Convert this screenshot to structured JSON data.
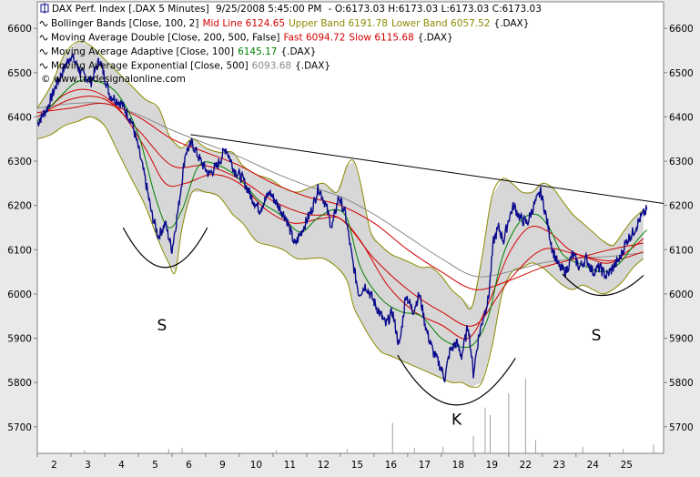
{
  "chart_data": {
    "type": "line",
    "title_line": {
      "instrument": "DAX Perf. Index [.DAX 5 Minutes]",
      "datetime": "9/25/2008 5:45:00 PM",
      "ohlc": "- O:6173.03 H:6173.03 L:6173.03 C:6173.03"
    },
    "legend": [
      {
        "label": "Bollinger Bands [Close, 100, 2]",
        "parts": [
          {
            "text": "Mid Line 6124.65",
            "color": "#d40000"
          },
          {
            "text": "Upper Band 6191.78",
            "color": "#8a8a00"
          },
          {
            "text": "Lower Band 6057.52",
            "color": "#8a8a00"
          },
          {
            "text": "{.DAX}",
            "color": "#000000"
          }
        ]
      },
      {
        "label": "Moving Average Double [Close, 200, 500, False]",
        "parts": [
          {
            "text": "Fast 6094.72",
            "color": "#d40000"
          },
          {
            "text": "Slow 6115.68",
            "color": "#d40000"
          },
          {
            "text": "{.DAX}",
            "color": "#000000"
          }
        ]
      },
      {
        "label": "Moving Average Adaptive [Close, 100]",
        "parts": [
          {
            "text": "6145.17",
            "color": "#008000"
          },
          {
            "text": "{.DAX}",
            "color": "#000000"
          }
        ]
      },
      {
        "label": "Moving Average Exponential [Close, 500]",
        "parts": [
          {
            "text": "6093.68",
            "color": "#8a8a8a"
          },
          {
            "text": "{.DAX}",
            "color": "#000000"
          }
        ]
      }
    ],
    "watermark": "© www.tradesignalonline.com",
    "ylim": [
      5640,
      6660
    ],
    "y_ticks": [
      5700,
      5800,
      5900,
      6000,
      6100,
      6200,
      6300,
      6400,
      6500,
      6600
    ],
    "x_ticks": [
      "2",
      "3",
      "4",
      "5",
      "6",
      "9",
      "10",
      "11",
      "12",
      "15",
      "16",
      "17",
      "18",
      "19",
      "22",
      "23",
      "24",
      "25"
    ],
    "x_range": [
      0,
      18.6
    ],
    "x_tick_positions": [
      0.5,
      1.5,
      2.5,
      3.5,
      4.5,
      5.5,
      6.5,
      7.5,
      8.5,
      9.5,
      10.5,
      11.5,
      12.5,
      13.5,
      14.5,
      15.5,
      16.5,
      17.5
    ],
    "price_keypoints": [
      [
        0.0,
        6385
      ],
      [
        0.3,
        6420
      ],
      [
        0.55,
        6470
      ],
      [
        0.8,
        6510
      ],
      [
        1.0,
        6540
      ],
      [
        1.3,
        6500
      ],
      [
        1.6,
        6480
      ],
      [
        1.85,
        6530
      ],
      [
        2.15,
        6450
      ],
      [
        2.5,
        6430
      ],
      [
        2.8,
        6390
      ],
      [
        3.0,
        6330
      ],
      [
        3.2,
        6260
      ],
      [
        3.4,
        6180
      ],
      [
        3.6,
        6130
      ],
      [
        3.8,
        6160
      ],
      [
        4.0,
        6100
      ],
      [
        4.2,
        6200
      ],
      [
        4.4,
        6320
      ],
      [
        4.6,
        6340
      ],
      [
        4.85,
        6300
      ],
      [
        5.1,
        6270
      ],
      [
        5.35,
        6290
      ],
      [
        5.6,
        6330
      ],
      [
        5.85,
        6280
      ],
      [
        6.1,
        6260
      ],
      [
        6.35,
        6220
      ],
      [
        6.6,
        6190
      ],
      [
        6.9,
        6230
      ],
      [
        7.15,
        6200
      ],
      [
        7.4,
        6170
      ],
      [
        7.65,
        6110
      ],
      [
        7.9,
        6150
      ],
      [
        8.15,
        6190
      ],
      [
        8.35,
        6240
      ],
      [
        8.55,
        6205
      ],
      [
        8.75,
        6150
      ],
      [
        8.95,
        6220
      ],
      [
        9.15,
        6180
      ],
      [
        9.35,
        6080
      ],
      [
        9.55,
        6000
      ],
      [
        9.75,
        6020
      ],
      [
        9.95,
        5990
      ],
      [
        10.15,
        5960
      ],
      [
        10.35,
        5930
      ],
      [
        10.55,
        5960
      ],
      [
        10.75,
        5880
      ],
      [
        10.95,
        6000
      ],
      [
        11.15,
        5960
      ],
      [
        11.35,
        6000
      ],
      [
        11.55,
        5920
      ],
      [
        11.75,
        5870
      ],
      [
        11.95,
        5840
      ],
      [
        12.1,
        5810
      ],
      [
        12.25,
        5870
      ],
      [
        12.45,
        5890
      ],
      [
        12.6,
        5860
      ],
      [
        12.8,
        5930
      ],
      [
        12.95,
        5820
      ],
      [
        13.1,
        5900
      ],
      [
        13.25,
        5950
      ],
      [
        13.4,
        5990
      ],
      [
        13.55,
        6120
      ],
      [
        13.7,
        6150
      ],
      [
        13.85,
        6120
      ],
      [
        14.0,
        6170
      ],
      [
        14.15,
        6200
      ],
      [
        14.35,
        6170
      ],
      [
        14.55,
        6160
      ],
      [
        14.75,
        6200
      ],
      [
        14.95,
        6230
      ],
      [
        15.1,
        6180
      ],
      [
        15.3,
        6100
      ],
      [
        15.5,
        6060
      ],
      [
        15.7,
        6050
      ],
      [
        15.9,
        6090
      ],
      [
        16.1,
        6060
      ],
      [
        16.3,
        6080
      ],
      [
        16.5,
        6050
      ],
      [
        16.7,
        6060
      ],
      [
        16.9,
        6040
      ],
      [
        17.1,
        6060
      ],
      [
        17.3,
        6080
      ],
      [
        17.5,
        6120
      ],
      [
        17.7,
        6140
      ],
      [
        17.9,
        6170
      ],
      [
        18.1,
        6190
      ]
    ],
    "upper_band_keypoints": [
      [
        0.0,
        6420
      ],
      [
        0.4,
        6470
      ],
      [
        0.8,
        6540
      ],
      [
        1.2,
        6570
      ],
      [
        1.6,
        6560
      ],
      [
        2.0,
        6530
      ],
      [
        2.4,
        6500
      ],
      [
        2.8,
        6470
      ],
      [
        3.2,
        6440
      ],
      [
        3.6,
        6420
      ],
      [
        3.9,
        6360
      ],
      [
        4.1,
        6340
      ],
      [
        4.3,
        6330
      ],
      [
        4.6,
        6350
      ],
      [
        5.0,
        6330
      ],
      [
        5.4,
        6320
      ],
      [
        5.8,
        6320
      ],
      [
        6.1,
        6290
      ],
      [
        6.5,
        6270
      ],
      [
        6.9,
        6260
      ],
      [
        7.3,
        6240
      ],
      [
        7.7,
        6230
      ],
      [
        8.1,
        6240
      ],
      [
        8.5,
        6250
      ],
      [
        8.9,
        6230
      ],
      [
        9.2,
        6290
      ],
      [
        9.4,
        6300
      ],
      [
        9.6,
        6250
      ],
      [
        9.9,
        6140
      ],
      [
        10.2,
        6110
      ],
      [
        10.5,
        6090
      ],
      [
        10.8,
        6080
      ],
      [
        11.1,
        6070
      ],
      [
        11.4,
        6060
      ],
      [
        11.7,
        6060
      ],
      [
        12.0,
        6040
      ],
      [
        12.3,
        6010
      ],
      [
        12.6,
        5990
      ],
      [
        12.9,
        5970
      ],
      [
        13.2,
        6080
      ],
      [
        13.5,
        6220
      ],
      [
        13.8,
        6260
      ],
      [
        14.1,
        6250
      ],
      [
        14.4,
        6230
      ],
      [
        14.7,
        6230
      ],
      [
        15.0,
        6250
      ],
      [
        15.3,
        6240
      ],
      [
        15.6,
        6210
      ],
      [
        15.9,
        6180
      ],
      [
        16.2,
        6160
      ],
      [
        16.5,
        6140
      ],
      [
        16.8,
        6120
      ],
      [
        17.1,
        6110
      ],
      [
        17.4,
        6140
      ],
      [
        17.7,
        6170
      ],
      [
        18.0,
        6190
      ]
    ],
    "lower_band_keypoints": [
      [
        0.0,
        6350
      ],
      [
        0.4,
        6360
      ],
      [
        0.8,
        6380
      ],
      [
        1.2,
        6390
      ],
      [
        1.6,
        6400
      ],
      [
        2.0,
        6380
      ],
      [
        2.4,
        6320
      ],
      [
        2.8,
        6260
      ],
      [
        3.2,
        6200
      ],
      [
        3.6,
        6120
      ],
      [
        3.9,
        6070
      ],
      [
        4.1,
        6050
      ],
      [
        4.3,
        6150
      ],
      [
        4.6,
        6230
      ],
      [
        5.0,
        6230
      ],
      [
        5.4,
        6220
      ],
      [
        5.8,
        6180
      ],
      [
        6.1,
        6160
      ],
      [
        6.5,
        6120
      ],
      [
        6.9,
        6110
      ],
      [
        7.3,
        6100
      ],
      [
        7.7,
        6080
      ],
      [
        8.1,
        6080
      ],
      [
        8.5,
        6080
      ],
      [
        8.9,
        6060
      ],
      [
        9.2,
        6030
      ],
      [
        9.4,
        5970
      ],
      [
        9.6,
        5940
      ],
      [
        9.9,
        5900
      ],
      [
        10.2,
        5870
      ],
      [
        10.5,
        5860
      ],
      [
        10.8,
        5850
      ],
      [
        11.1,
        5840
      ],
      [
        11.4,
        5830
      ],
      [
        11.7,
        5820
      ],
      [
        12.0,
        5810
      ],
      [
        12.3,
        5800
      ],
      [
        12.6,
        5800
      ],
      [
        12.9,
        5790
      ],
      [
        13.2,
        5800
      ],
      [
        13.5,
        5880
      ],
      [
        13.8,
        6000
      ],
      [
        14.1,
        6050
      ],
      [
        14.4,
        6060
      ],
      [
        14.7,
        6070
      ],
      [
        15.0,
        6060
      ],
      [
        15.3,
        6040
      ],
      [
        15.6,
        6020
      ],
      [
        15.9,
        6010
      ],
      [
        16.2,
        6020
      ],
      [
        16.5,
        6010
      ],
      [
        16.8,
        6000
      ],
      [
        17.1,
        6010
      ],
      [
        17.4,
        6030
      ],
      [
        17.7,
        6060
      ],
      [
        18.0,
        6080
      ]
    ],
    "mid_line_keypoints": [
      [
        0.0,
        6390
      ],
      [
        0.8,
        6450
      ],
      [
        1.6,
        6460
      ],
      [
        2.4,
        6420
      ],
      [
        3.2,
        6330
      ],
      [
        3.8,
        6250
      ],
      [
        4.4,
        6250
      ],
      [
        5.2,
        6270
      ],
      [
        6.0,
        6250
      ],
      [
        6.8,
        6190
      ],
      [
        7.6,
        6160
      ],
      [
        8.4,
        6170
      ],
      [
        9.0,
        6170
      ],
      [
        9.6,
        6120
      ],
      [
        10.4,
        6020
      ],
      [
        11.2,
        5960
      ],
      [
        12.0,
        5930
      ],
      [
        12.8,
        5900
      ],
      [
        13.4,
        5980
      ],
      [
        14.0,
        6090
      ],
      [
        14.6,
        6150
      ],
      [
        15.2,
        6140
      ],
      [
        15.8,
        6100
      ],
      [
        16.4,
        6080
      ],
      [
        17.0,
        6070
      ],
      [
        17.6,
        6100
      ],
      [
        18.0,
        6125
      ]
    ],
    "ma_fast_keypoints": [
      [
        0.0,
        6400
      ],
      [
        1.0,
        6440
      ],
      [
        2.0,
        6440
      ],
      [
        3.0,
        6370
      ],
      [
        4.0,
        6290
      ],
      [
        5.0,
        6290
      ],
      [
        6.0,
        6260
      ],
      [
        7.0,
        6210
      ],
      [
        8.0,
        6180
      ],
      [
        9.0,
        6170
      ],
      [
        10.0,
        6080
      ],
      [
        11.0,
        6010
      ],
      [
        12.0,
        5960
      ],
      [
        13.0,
        5930
      ],
      [
        14.0,
        6030
      ],
      [
        15.0,
        6100
      ],
      [
        16.0,
        6090
      ],
      [
        17.0,
        6075
      ],
      [
        18.0,
        6095
      ]
    ],
    "ma_slow_keypoints": [
      [
        0.0,
        6410
      ],
      [
        1.0,
        6420
      ],
      [
        2.0,
        6430
      ],
      [
        3.0,
        6400
      ],
      [
        4.0,
        6350
      ],
      [
        5.0,
        6320
      ],
      [
        6.0,
        6290
      ],
      [
        7.0,
        6250
      ],
      [
        8.0,
        6220
      ],
      [
        9.0,
        6200
      ],
      [
        10.0,
        6160
      ],
      [
        11.0,
        6100
      ],
      [
        12.0,
        6050
      ],
      [
        13.0,
        6010
      ],
      [
        14.0,
        6030
      ],
      [
        15.0,
        6060
      ],
      [
        16.0,
        6080
      ],
      [
        17.0,
        6100
      ],
      [
        18.0,
        6115
      ]
    ],
    "ma_exp_keypoints": [
      [
        0.0,
        6420
      ],
      [
        1.0,
        6430
      ],
      [
        2.0,
        6430
      ],
      [
        3.0,
        6405
      ],
      [
        4.0,
        6370
      ],
      [
        5.0,
        6340
      ],
      [
        6.0,
        6310
      ],
      [
        7.0,
        6275
      ],
      [
        8.0,
        6245
      ],
      [
        9.0,
        6220
      ],
      [
        10.0,
        6180
      ],
      [
        11.0,
        6130
      ],
      [
        12.0,
        6080
      ],
      [
        13.0,
        6040
      ],
      [
        14.0,
        6050
      ],
      [
        15.0,
        6070
      ],
      [
        16.0,
        6080
      ],
      [
        17.0,
        6085
      ],
      [
        18.0,
        6093
      ]
    ],
    "ma_adaptive_keypoints": [
      [
        0.0,
        6390
      ],
      [
        0.6,
        6440
      ],
      [
        1.2,
        6480
      ],
      [
        1.8,
        6480
      ],
      [
        2.4,
        6450
      ],
      [
        3.0,
        6360
      ],
      [
        3.5,
        6220
      ],
      [
        3.9,
        6150
      ],
      [
        4.3,
        6190
      ],
      [
        4.8,
        6290
      ],
      [
        5.4,
        6290
      ],
      [
        6.0,
        6260
      ],
      [
        6.6,
        6210
      ],
      [
        7.2,
        6180
      ],
      [
        7.8,
        6140
      ],
      [
        8.3,
        6170
      ],
      [
        8.8,
        6190
      ],
      [
        9.2,
        6170
      ],
      [
        9.6,
        6060
      ],
      [
        10.2,
        5990
      ],
      [
        10.8,
        5960
      ],
      [
        11.4,
        5950
      ],
      [
        12.0,
        5900
      ],
      [
        12.6,
        5880
      ],
      [
        13.0,
        5890
      ],
      [
        13.4,
        5950
      ],
      [
        13.8,
        6080
      ],
      [
        14.3,
        6160
      ],
      [
        14.8,
        6180
      ],
      [
        15.2,
        6150
      ],
      [
        15.6,
        6090
      ],
      [
        16.2,
        6065
      ],
      [
        16.8,
        6050
      ],
      [
        17.3,
        6070
      ],
      [
        17.8,
        6120
      ],
      [
        18.1,
        6145
      ]
    ],
    "trendline": [
      [
        4.55,
        6360
      ],
      [
        19.9,
        6190
      ]
    ],
    "annotations": [
      {
        "label": "S",
        "x": 3.7,
        "y": 5918
      },
      {
        "label": "K",
        "x": 12.45,
        "y": 5705
      },
      {
        "label": "S",
        "x": 16.6,
        "y": 5895
      }
    ],
    "arcs": [
      {
        "x1": 2.55,
        "y1": 6150,
        "cx": 3.8,
        "cy": 5970,
        "x2": 5.05,
        "y2": 6150
      },
      {
        "x1": 10.7,
        "y1": 5862,
        "cx": 12.4,
        "cy": 5640,
        "x2": 14.2,
        "y2": 5855
      },
      {
        "x1": 15.6,
        "y1": 6045,
        "cx": 16.7,
        "cy": 5950,
        "x2": 18.0,
        "y2": 6042
      }
    ],
    "volume_spikes": [
      {
        "x": 1.4,
        "h": 0.03
      },
      {
        "x": 3.9,
        "h": 0.04
      },
      {
        "x": 4.3,
        "h": 0.05
      },
      {
        "x": 7.1,
        "h": 0.03
      },
      {
        "x": 9.2,
        "h": 0.04
      },
      {
        "x": 10.55,
        "h": 0.28
      },
      {
        "x": 11.2,
        "h": 0.05
      },
      {
        "x": 12.05,
        "h": 0.06
      },
      {
        "x": 12.95,
        "h": 0.16
      },
      {
        "x": 13.3,
        "h": 0.42
      },
      {
        "x": 13.45,
        "h": 0.35
      },
      {
        "x": 14.0,
        "h": 0.55
      },
      {
        "x": 14.5,
        "h": 0.68
      },
      {
        "x": 14.8,
        "h": 0.12
      },
      {
        "x": 16.2,
        "h": 0.06
      },
      {
        "x": 17.4,
        "h": 0.04
      },
      {
        "x": 18.3,
        "h": 0.08
      }
    ],
    "colors": {
      "price": "#0a0a8c",
      "mid": "#d40000",
      "bands": "#8a8a00",
      "band_fill": "#d0d0d0",
      "ma_fast": "#d40000",
      "ma_slow": "#d40000",
      "ma_exp": "#8a8a8a",
      "ma_adaptive": "#008000",
      "trend": "#000000",
      "plot_bg": "#ffffff"
    }
  }
}
